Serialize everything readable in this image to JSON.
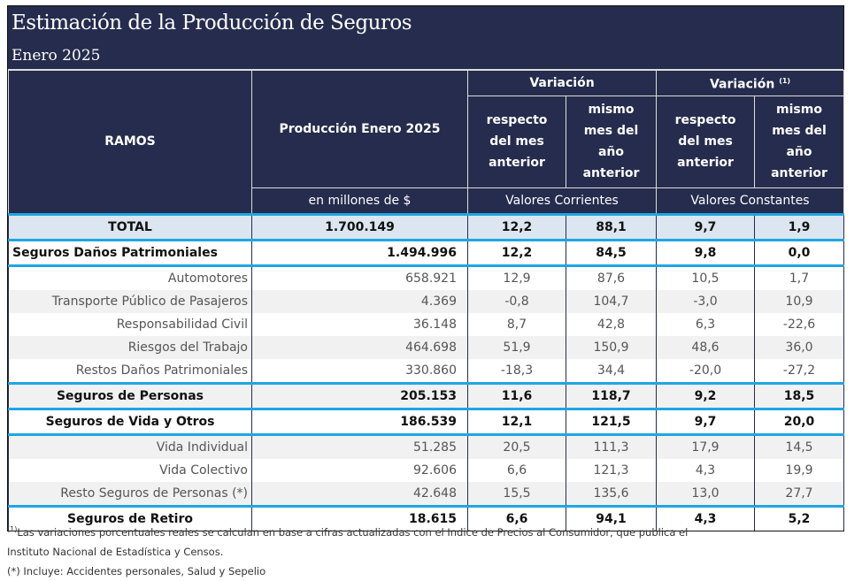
{
  "title": "Estimación de la Producción de Seguros",
  "subtitle": "Enero 2025",
  "header": {
    "ramos": "RAMOS",
    "produccion": "Producción Enero 2025",
    "unit": "en millones de $",
    "variacion": "Variación",
    "variacion_real": "Variación",
    "variacion_real_sup": "(1)",
    "respecto": "respecto del mes anterior",
    "mismo": "mismo mes del año anterior",
    "corrientes": "Valores Corrientes",
    "constantes": "Valores Constantes"
  },
  "rows": [
    {
      "ramo": "TOTAL",
      "prod": "1.700.149",
      "v1": "12,2",
      "v2": "88,1",
      "v3": "9,7",
      "v4": "1,9"
    },
    {
      "ramo": "Seguros Daños Patrimoniales",
      "prod": "1.494.996",
      "v1": "12,2",
      "v2": "84,5",
      "v3": "9,8",
      "v4": "0,0"
    },
    {
      "ramo": "Automotores",
      "prod": "658.921",
      "v1": "12,9",
      "v2": "87,6",
      "v3": "10,5",
      "v4": "1,7"
    },
    {
      "ramo": "Transporte Público de Pasajeros",
      "prod": "4.369",
      "v1": "-0,8",
      "v2": "104,7",
      "v3": "-3,0",
      "v4": "10,9"
    },
    {
      "ramo": "Responsabilidad Civil",
      "prod": "36.148",
      "v1": "8,7",
      "v2": "42,8",
      "v3": "6,3",
      "v4": "-22,6"
    },
    {
      "ramo": "Riesgos del Trabajo",
      "prod": "464.698",
      "v1": "51,9",
      "v2": "150,9",
      "v3": "48,6",
      "v4": "36,0"
    },
    {
      "ramo": "Restos Daños Patrimoniales",
      "prod": "330.860",
      "v1": "-18,3",
      "v2": "34,4",
      "v3": "-20,0",
      "v4": "-27,2"
    },
    {
      "ramo": "Seguros de Personas",
      "prod": "205.153",
      "v1": "11,6",
      "v2": "118,7",
      "v3": "9,2",
      "v4": "18,5"
    },
    {
      "ramo": "Seguros de Vida y Otros",
      "prod": "186.539",
      "v1": "12,1",
      "v2": "121,5",
      "v3": "9,7",
      "v4": "20,0"
    },
    {
      "ramo": "Vida Individual",
      "prod": "51.285",
      "v1": "20,5",
      "v2": "111,3",
      "v3": "17,9",
      "v4": "14,5"
    },
    {
      "ramo": "Vida Colectivo",
      "prod": "92.606",
      "v1": "6,6",
      "v2": "121,3",
      "v3": "4,3",
      "v4": "19,9"
    },
    {
      "ramo": "Resto Seguros de Personas (*)",
      "prod": "42.648",
      "v1": "15,5",
      "v2": "135,6",
      "v3": "13,0",
      "v4": "27,7"
    },
    {
      "ramo": "Seguros de Retiro",
      "prod": "18.615",
      "v1": "6,6",
      "v2": "94,1",
      "v3": "4,3",
      "v4": "5,2"
    }
  ],
  "notes": {
    "sup": "(1)",
    "note1": "Las variaciones porcentuales reales se calculan en base a cifras actualizadas con  el Indice de Precios al Consumidor, que publica el",
    "note1b": "Instituto Nacional de Estadística y  Censos.",
    "note2": "(*) Incluye: Accidentes personales, Salud y Sepelio"
  }
}
